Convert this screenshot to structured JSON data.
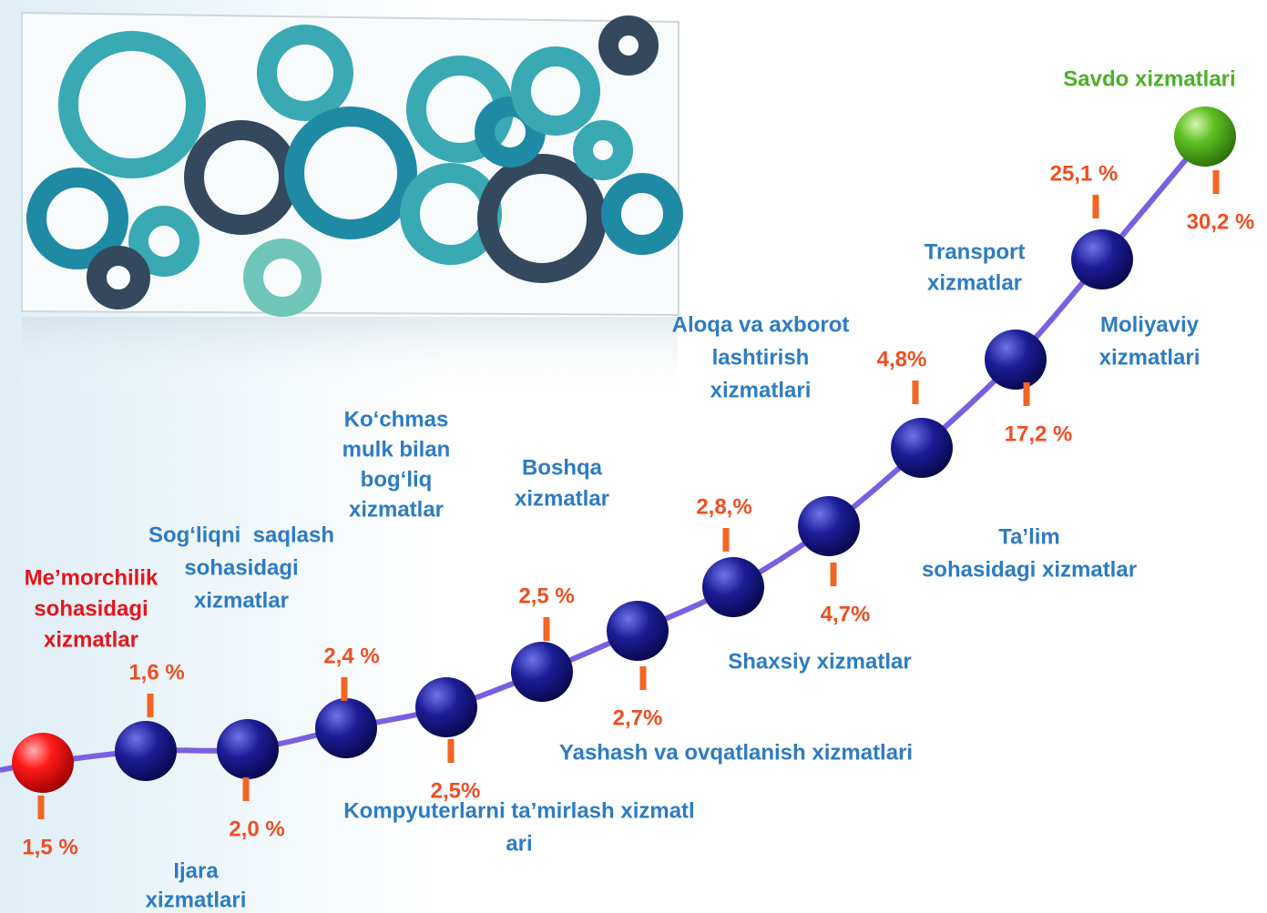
{
  "nodes": [
    {
      "label": [
        "Me’morchilik",
        "sohasidagi",
        "xizmatlar"
      ],
      "value": "1,5 %"
    },
    {
      "label": [
        "Sog‘liqni  saqlash",
        "sohasidagi",
        "xizmatlar"
      ],
      "value": "1,6 %"
    },
    {
      "label": [
        "Ijara",
        "xizmatlari"
      ],
      "value": "2,0 %"
    },
    {
      "label": [
        "Ko‘chmas",
        "mulk bilan",
        "bog‘liq",
        "xizmatlar"
      ],
      "value": "2,4 %"
    },
    {
      "label": [
        "Kompyuterlarni ta’mirlash xizmatl",
        "ari"
      ],
      "value": "2,5%"
    },
    {
      "label": [
        "Boshqa",
        "xizmatlar"
      ],
      "value": "2,5 %"
    },
    {
      "label": [
        "Yashash va ovqatlanish xizmatlari"
      ],
      "value": "2,7%"
    },
    {
      "label": [
        "Shaxsiy xizmatlar"
      ],
      "value": "2,8,%"
    },
    {
      "label": [
        "Ta’lim",
        "sohasidagi xizmatlar"
      ],
      "value": "4,7%"
    },
    {
      "label": [
        "Aloqa va axborot",
        "lashtirish",
        "xizmatlari"
      ],
      "value": "4,8%"
    },
    {
      "label": [
        "Moliyaviy",
        "xizmatlari"
      ],
      "value": "17,2 %"
    },
    {
      "label": [
        "Transport",
        "xizmatlar"
      ],
      "value": "25,1 %"
    },
    {
      "label": [
        "Savdo xizmatlari"
      ],
      "value": "30,2 %"
    }
  ]
}
